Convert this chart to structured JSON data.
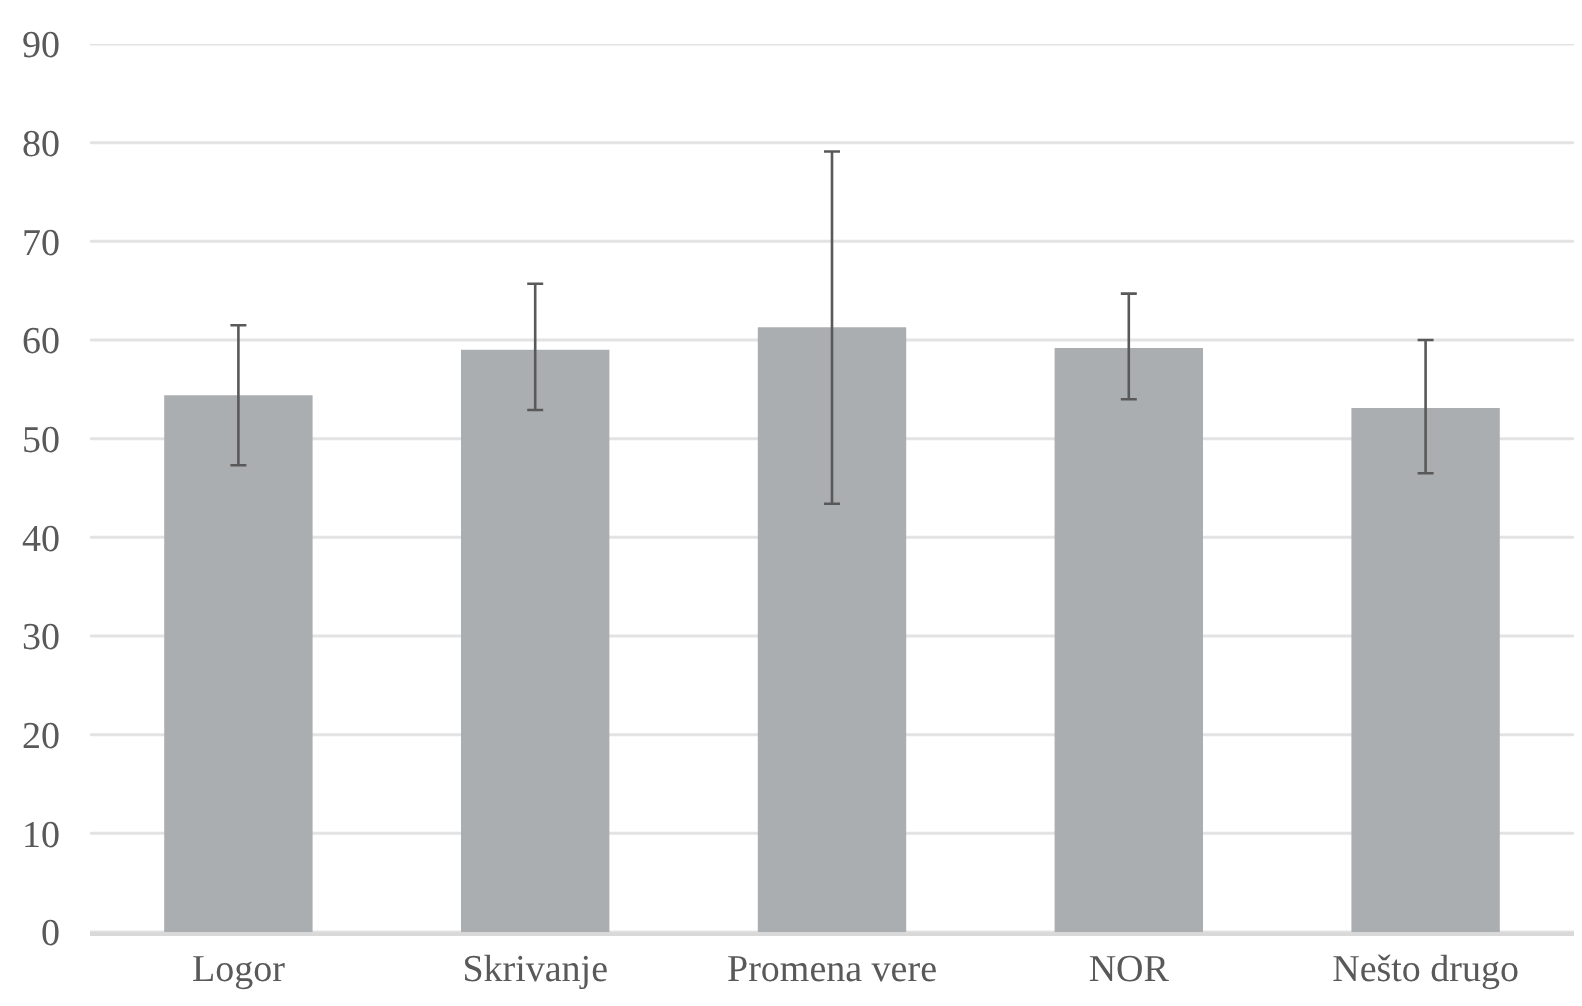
{
  "chart_data": {
    "type": "bar",
    "categories": [
      "Logor",
      "Skrivanje",
      "Promena vere",
      "NOR",
      "Nešto drugo"
    ],
    "values": [
      54.4,
      59.0,
      61.3,
      59.2,
      53.1
    ],
    "errors": [
      [
        47.3,
        61.5
      ],
      [
        52.9,
        65.7
      ],
      [
        43.4,
        79.1
      ],
      [
        54.0,
        64.7
      ],
      [
        46.5,
        60.0
      ]
    ],
    "color": "#abaeb1",
    "ylim": [
      0,
      90
    ],
    "yticks": [
      0,
      10,
      20,
      30,
      40,
      50,
      60,
      70,
      80,
      90
    ],
    "grid": "y"
  }
}
